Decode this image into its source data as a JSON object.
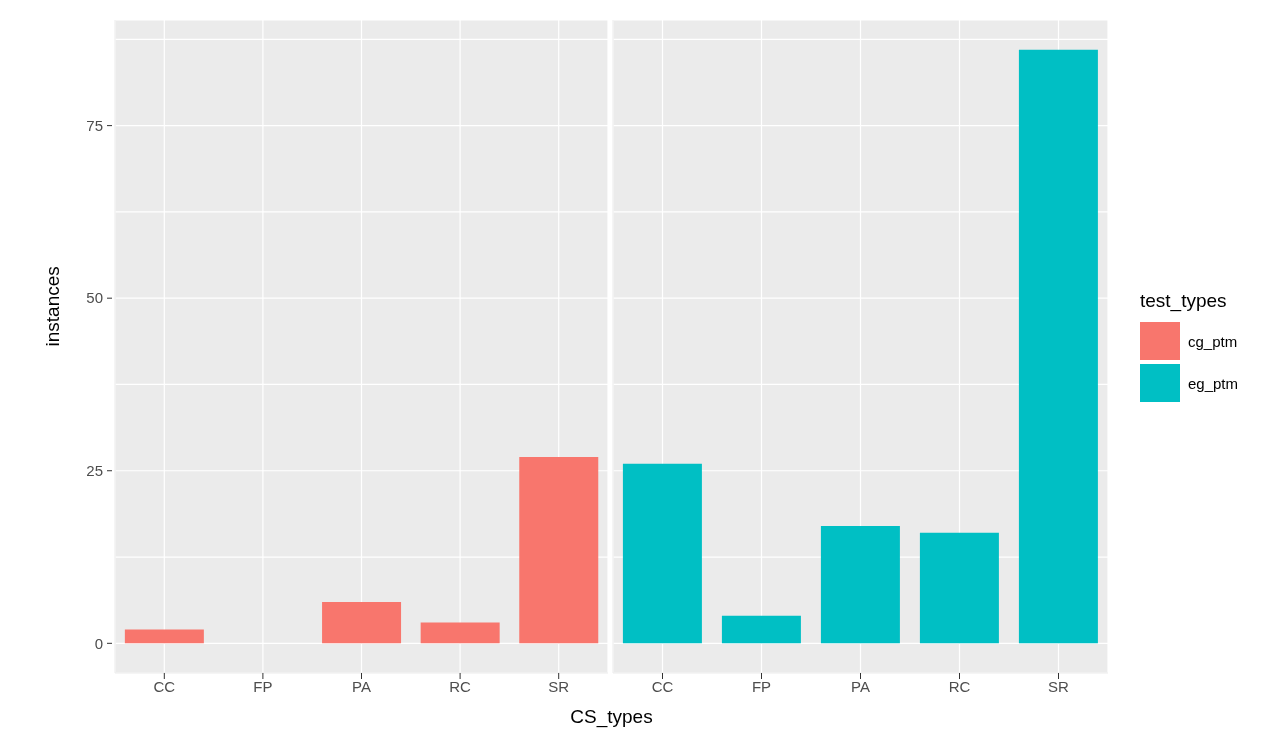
{
  "chart_data": [
    {
      "type": "bar",
      "ylabel": "instances",
      "xlabel": "CS_types",
      "categories": [
        "CC",
        "FP",
        "PA",
        "RC",
        "SR"
      ],
      "series": [
        {
          "name": "cg_ptm",
          "color": "#f8766d",
          "values": [
            2,
            null,
            6,
            3,
            27
          ]
        }
      ],
      "ylim": [
        -4.3,
        90.3
      ],
      "yticks": [
        0,
        {
          "value": 12.5,
          "label": null
        },
        25,
        {
          "value": 37.5,
          "label": null
        },
        50,
        {
          "value": 62.5,
          "label": null
        },
        75,
        {
          "value": 87.5,
          "label": null
        }
      ],
      "grid": true,
      "legend": "right"
    },
    {
      "type": "bar",
      "legend_title": "test_types",
      "categories": [
        "CC",
        "FP",
        "PA",
        "RC",
        "SR"
      ],
      "series": [
        {
          "name": "eg_ptm",
          "color": "#00bfc4",
          "values": [
            26,
            4,
            17,
            16,
            86
          ]
        }
      ],
      "ylim": [
        -4.3,
        90.3
      ],
      "yticks": [
        0,
        {
          "value": 12.5,
          "label": null
        },
        25,
        {
          "value": 37.5,
          "label": null
        },
        50,
        {
          "value": 62.5,
          "label": null
        },
        75,
        {
          "value": 87.5,
          "label": null
        }
      ],
      "grid": true,
      "legend": "right",
      "tick_labels": "x"
    }
  ]
}
